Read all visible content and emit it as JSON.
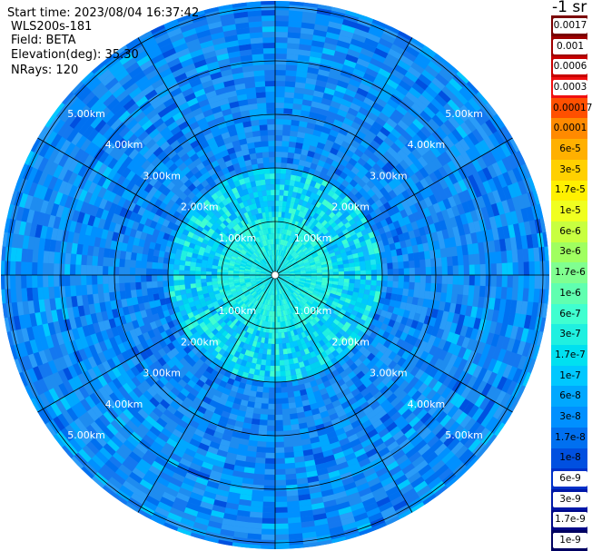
{
  "info": {
    "start_time": "Start time: 2023/08/04 16:37:42",
    "instrument": "WLS200s-181",
    "field": "Field: BETA",
    "elevation": "Elevation(deg): 35.30",
    "nrays": "NRays: 120"
  },
  "colorbar": {
    "units": "-1 sr",
    "labels": [
      "0.0017",
      "0.001",
      "0.0006",
      "0.0003",
      "0.00017",
      "0.0001",
      "6e-5",
      "3e-5",
      "1.7e-5",
      "1e-5",
      "6e-6",
      "3e-6",
      "1.7e-6",
      "1e-6",
      "6e-7",
      "3e-7",
      "1.7e-7",
      "1e-7",
      "6e-8",
      "3e-8",
      "1.7e-8",
      "1e-8",
      "6e-9",
      "3e-9",
      "1.7e-9",
      "1e-9"
    ],
    "colors": [
      "#7a0000",
      "#a00000",
      "#c80000",
      "#f01010",
      "#ff5000",
      "#ff8a00",
      "#ffb000",
      "#ffd000",
      "#fff000",
      "#f0ff20",
      "#c8ff40",
      "#a0ff60",
      "#80ff90",
      "#60ffb0",
      "#40ffd0",
      "#20f0e0",
      "#00e0f0",
      "#00c8ff",
      "#00a8ff",
      "#0090ff",
      "#0070f0",
      "#0050e0",
      "#0030c8",
      "#0018a8",
      "#000888",
      "#000060"
    ]
  },
  "rings": {
    "labels": [
      "1.00km",
      "2.00km",
      "3.00km",
      "4.00km",
      "5.00km"
    ]
  }
}
